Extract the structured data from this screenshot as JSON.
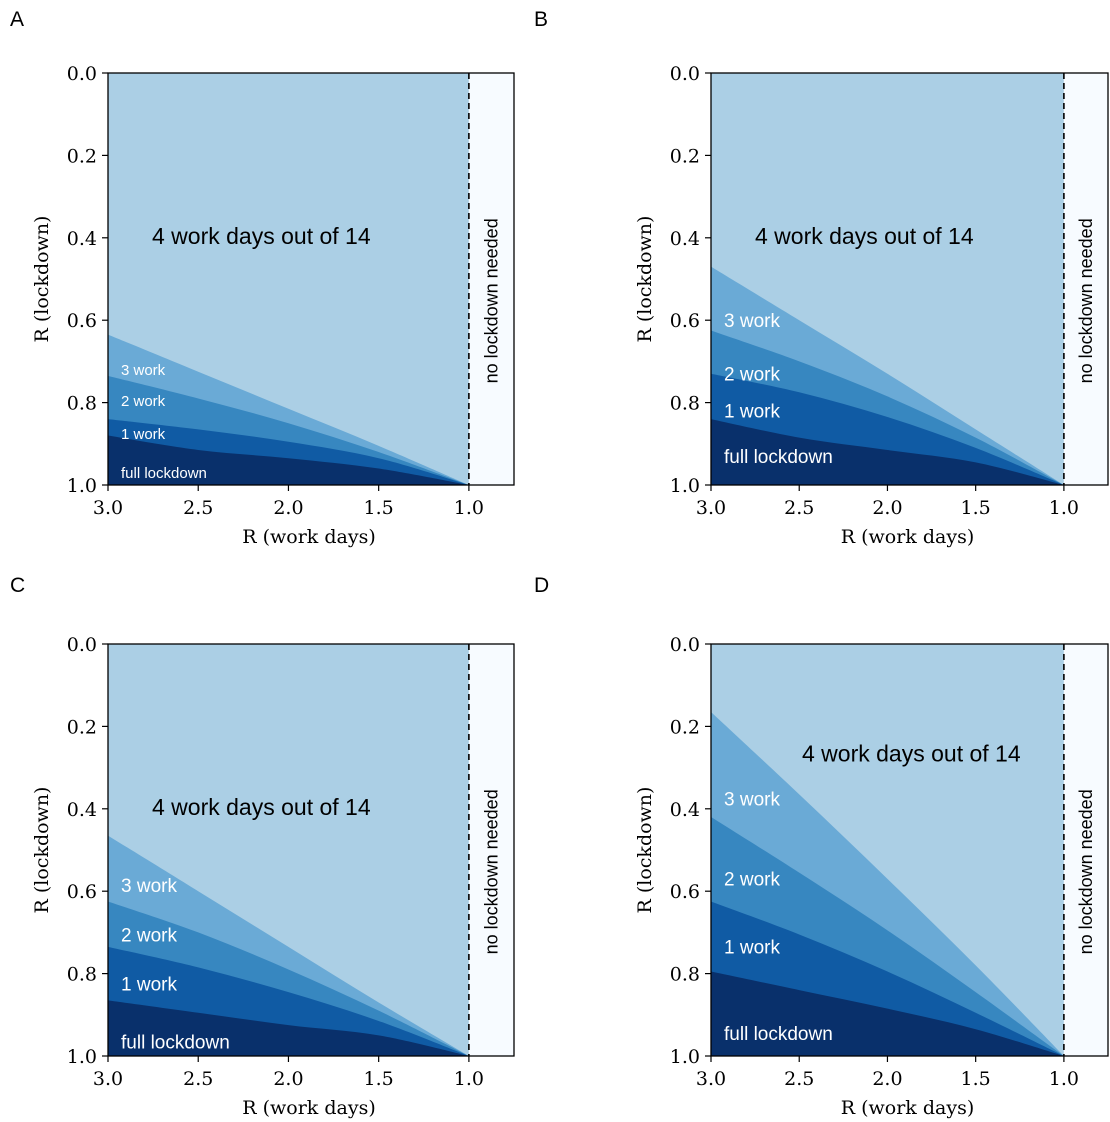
{
  "colors": {
    "c4": "#abcfe5",
    "c3": "#6aaad6",
    "c2": "#3787c0",
    "c1": "#105ba4",
    "c0": "#09306b",
    "no_lockdown": "#f7fbff"
  },
  "chart_data": [
    {
      "panel": "A",
      "type": "area",
      "title": "4 work days out of 14",
      "side_label": "no lockdown needed",
      "xlabel": "R (work days)",
      "ylabel": "R (lockdown)",
      "x_ticks": [
        "3.0",
        "2.5",
        "2.0",
        "1.5",
        "1.0"
      ],
      "y_ticks": [
        "0.0",
        "0.2",
        "0.4",
        "0.6",
        "0.8",
        "1.0"
      ],
      "xlim": [
        3.0,
        0.75
      ],
      "ylim": [
        1.0,
        0.0
      ],
      "threshold_x": 1.0,
      "x": [
        3.0,
        2.5,
        2.0,
        1.5,
        1.0
      ],
      "series": [
        {
          "name": "3 work",
          "values": [
            0.635,
            0.725,
            0.815,
            0.905,
            1.0
          ]
        },
        {
          "name": "2 work",
          "values": [
            0.735,
            0.79,
            0.85,
            0.92,
            1.0
          ]
        },
        {
          "name": "1 work",
          "values": [
            0.84,
            0.865,
            0.895,
            0.935,
            1.0
          ]
        },
        {
          "name": "full lockdown",
          "values": [
            0.88,
            0.915,
            0.935,
            0.96,
            1.0
          ]
        }
      ],
      "label_values": [
        0.72,
        0.795,
        0.875,
        0.97
      ],
      "label_size": 15
    },
    {
      "panel": "B",
      "type": "area",
      "title": "4 work days out of 14",
      "side_label": "no lockdown needed",
      "xlabel": "R (work days)",
      "ylabel": "R (lockdown)",
      "x_ticks": [
        "3.0",
        "2.5",
        "2.0",
        "1.5",
        "1.0"
      ],
      "y_ticks": [
        "0.0",
        "0.2",
        "0.4",
        "0.6",
        "0.8",
        "1.0"
      ],
      "xlim": [
        3.0,
        0.75
      ],
      "ylim": [
        1.0,
        0.0
      ],
      "threshold_x": 1.0,
      "x": [
        3.0,
        2.5,
        2.0,
        1.5,
        1.0
      ],
      "series": [
        {
          "name": "3 work",
          "values": [
            0.47,
            0.6,
            0.73,
            0.865,
            1.0
          ]
        },
        {
          "name": "2 work",
          "values": [
            0.625,
            0.7,
            0.785,
            0.885,
            1.0
          ]
        },
        {
          "name": "1 work",
          "values": [
            0.73,
            0.775,
            0.835,
            0.91,
            1.0
          ]
        },
        {
          "name": "full lockdown",
          "values": [
            0.84,
            0.885,
            0.915,
            0.945,
            1.0
          ]
        }
      ],
      "label_values": [
        0.6,
        0.73,
        0.82,
        0.93
      ],
      "label_size": 19
    },
    {
      "panel": "C",
      "type": "area",
      "title": "4 work days out of 14",
      "side_label": "no lockdown needed",
      "xlabel": "R (work days)",
      "ylabel": "R (lockdown)",
      "x_ticks": [
        "3.0",
        "2.5",
        "2.0",
        "1.5",
        "1.0"
      ],
      "y_ticks": [
        "0.0",
        "0.2",
        "0.4",
        "0.6",
        "0.8",
        "1.0"
      ],
      "xlim": [
        3.0,
        0.75
      ],
      "ylim": [
        1.0,
        0.0
      ],
      "threshold_x": 1.0,
      "x": [
        3.0,
        2.5,
        2.0,
        1.5,
        1.0
      ],
      "series": [
        {
          "name": "3 work",
          "values": [
            0.465,
            0.6,
            0.735,
            0.87,
            1.0
          ]
        },
        {
          "name": "2 work",
          "values": [
            0.625,
            0.7,
            0.79,
            0.89,
            1.0
          ]
        },
        {
          "name": "1 work",
          "values": [
            0.735,
            0.785,
            0.845,
            0.915,
            1.0
          ]
        },
        {
          "name": "full lockdown",
          "values": [
            0.865,
            0.895,
            0.925,
            0.95,
            1.0
          ]
        }
      ],
      "label_values": [
        0.585,
        0.705,
        0.825,
        0.965
      ],
      "label_size": 19
    },
    {
      "panel": "D",
      "type": "area",
      "title": "4 work days out of 14",
      "side_label": "no lockdown needed",
      "xlabel": "R (work days)",
      "ylabel": "R (lockdown)",
      "x_ticks": [
        "3.0",
        "2.5",
        "2.0",
        "1.5",
        "1.0"
      ],
      "y_ticks": [
        "0.0",
        "0.2",
        "0.4",
        "0.6",
        "0.8",
        "1.0"
      ],
      "xlim": [
        3.0,
        0.75
      ],
      "ylim": [
        1.0,
        0.0
      ],
      "threshold_x": 1.0,
      "x": [
        3.0,
        2.5,
        2.0,
        1.5,
        1.0
      ],
      "series": [
        {
          "name": "3 work",
          "values": [
            0.165,
            0.365,
            0.57,
            0.78,
            1.0
          ]
        },
        {
          "name": "2 work",
          "values": [
            0.42,
            0.555,
            0.695,
            0.845,
            1.0
          ]
        },
        {
          "name": "1 work",
          "values": [
            0.625,
            0.705,
            0.795,
            0.895,
            1.0
          ]
        },
        {
          "name": "full lockdown",
          "values": [
            0.795,
            0.84,
            0.885,
            0.935,
            1.0
          ]
        }
      ],
      "label_values": [
        0.375,
        0.57,
        0.735,
        0.945
      ],
      "label_size": 19
    }
  ]
}
